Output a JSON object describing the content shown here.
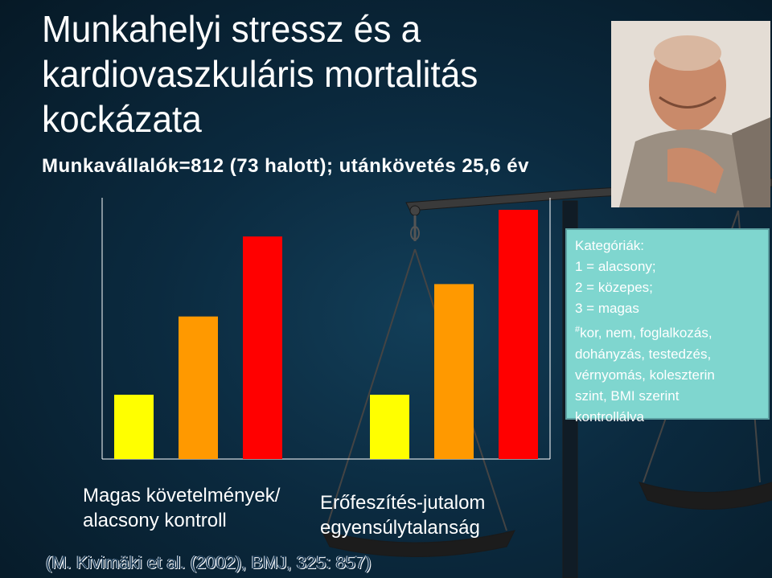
{
  "title_lines": [
    "Munkahelyi stressz és a",
    "kardiovaszkuláris mortalitás",
    "kockázata"
  ],
  "subtitle": "Munkavállalók=812 (73 halott); utánkövetés 25,6 év",
  "legend": {
    "lines": [
      "Kategóriák:",
      "1 = alacsony;",
      "2 = közepes;",
      "3 = magas",
      "kor, nem, foglalkozás,",
      "dohányzás, testedzés,",
      "vérnyomás, koleszterin",
      "szint, BMI szerint",
      "kontrollálva"
    ],
    "hash_mark": "#"
  },
  "chart_data": {
    "type": "bar",
    "ylim": [
      0,
      100
    ],
    "groups": [
      {
        "label_lines": [
          "Magas követelmények/",
          "alacsony kontroll"
        ],
        "values": [
          25.8,
          57.2,
          89.3
        ],
        "colors": [
          "#ffff00",
          "#ff9900",
          "#ff0000"
        ]
      },
      {
        "label_lines": [
          "Erőfeszítés-jutalom",
          "egyensúlytalanság"
        ],
        "values": [
          25.8,
          70.2,
          100
        ],
        "colors": [
          "#ffff00",
          "#ff9900",
          "#ff0000"
        ]
      }
    ],
    "grid": false
  },
  "citation": "(M. Kivimäki et al. (2002), BMJ, 325: 857)",
  "colors": {
    "background": "#0b2a3f",
    "legend_bg": "#7fd6cf",
    "low": "#ffff00",
    "medium": "#ff9900",
    "high": "#ff0000"
  }
}
